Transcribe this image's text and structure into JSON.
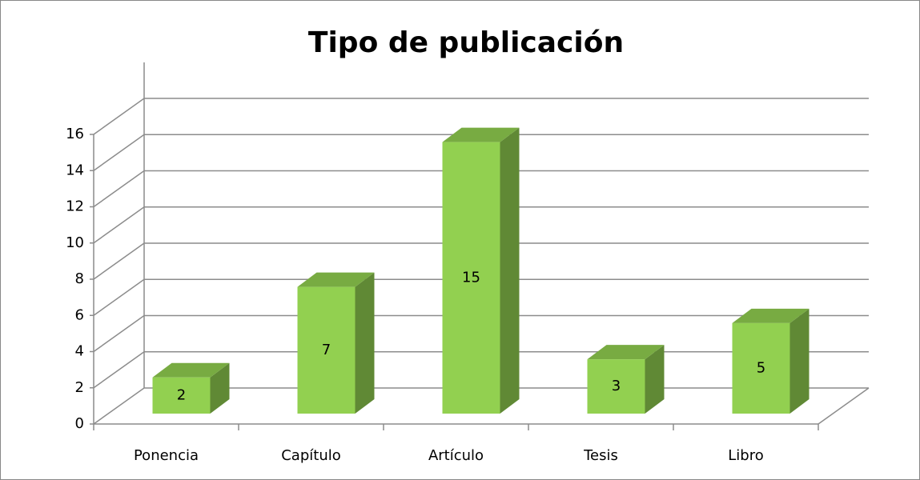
{
  "chart_data": {
    "type": "bar3d",
    "title": "Tipo de publicación",
    "categories": [
      "Ponencia",
      "Capítulo",
      "Artículo",
      "Tesis",
      "Libro"
    ],
    "values": [
      2,
      7,
      15,
      3,
      5
    ],
    "color": "#92d050",
    "ylim": [
      0,
      16
    ],
    "yticks": [
      0,
      2,
      4,
      6,
      8,
      10,
      12,
      14,
      16
    ],
    "grid": true,
    "data_labels": true
  }
}
